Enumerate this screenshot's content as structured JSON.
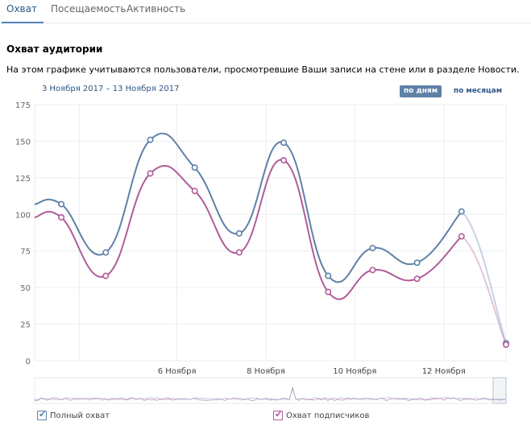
{
  "tabs": [
    {
      "label": "Охват"
    },
    {
      "label": "Посещаемость"
    },
    {
      "label": "Активность"
    }
  ],
  "section": {
    "title": "Охват аудитории",
    "description": "На этом графике учитываются пользователи, просмотревшие Ваши записи на стене или в разделе Новости."
  },
  "date_range": "3 Ноября 2017 – 13 Ноября 2017",
  "period_buttons": {
    "days": "по дням",
    "months": "по месяцам"
  },
  "legend": [
    {
      "label": "Полный охват",
      "color": "#5e81a8",
      "checked": true
    },
    {
      "label": "Охват подписчиков",
      "color": "#b05c99",
      "checked": true
    }
  ],
  "colors": {
    "full": "#5e81a8",
    "subscribers": "#b05c99",
    "accent": "#2a5885"
  },
  "chart_data": {
    "type": "line",
    "x": [
      "3 Ноября",
      "4 Ноября",
      "5 Ноября",
      "6 Ноября",
      "7 Ноября",
      "8 Ноября",
      "9 Ноября",
      "10 Ноября",
      "11 Ноября",
      "12 Ноября",
      "13 Ноября"
    ],
    "x_tick_labels": [
      "6 Ноября",
      "8 Ноября",
      "10 Ноября",
      "12 Ноября"
    ],
    "y_ticks": [
      0,
      25,
      50,
      75,
      100,
      125,
      150,
      175
    ],
    "ylim": [
      0,
      175
    ],
    "grid": true,
    "curve_x": [
      2.6,
      3.2,
      4.2,
      5.2,
      6.2,
      7.2,
      8.2,
      9.2,
      10.2,
      11.2,
      12.2,
      13.2
    ],
    "series": [
      {
        "name": "Полный охват",
        "values": [
          107,
          74,
          151,
          132,
          87,
          149,
          58,
          77,
          67,
          102,
          12
        ],
        "first_value": 107
      },
      {
        "name": "Охват подписчиков",
        "values": [
          98,
          58,
          128,
          116,
          74,
          137,
          47,
          62,
          56,
          85,
          11
        ],
        "first_value": 98
      }
    ]
  }
}
